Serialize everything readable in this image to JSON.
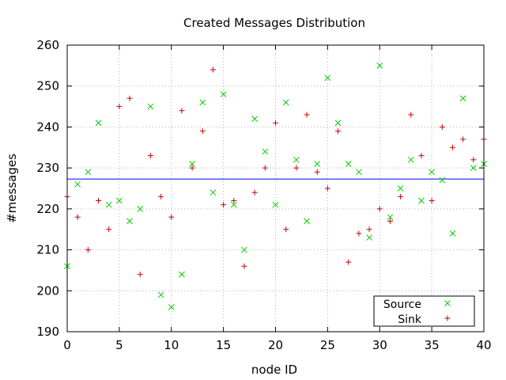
{
  "chart_data": {
    "type": "scatter",
    "title": "Created Messages Distribution",
    "xlabel": "node ID",
    "ylabel": "#messages",
    "xlim": [
      0,
      40
    ],
    "ylim": [
      190,
      260
    ],
    "xticks": [
      0,
      5,
      10,
      15,
      20,
      25,
      30,
      35,
      40
    ],
    "yticks": [
      190,
      200,
      210,
      220,
      230,
      240,
      250,
      260
    ],
    "grid": true,
    "legend_position": "bottom-right",
    "reference_line": {
      "y": 227.3,
      "color": "#0000ff"
    },
    "series": [
      {
        "name": "Source",
        "marker": "x",
        "color": "#00cc00",
        "x": [
          0,
          1,
          2,
          3,
          4,
          5,
          6,
          7,
          8,
          9,
          10,
          11,
          12,
          13,
          14,
          15,
          16,
          17,
          18,
          19,
          20,
          21,
          22,
          23,
          24,
          25,
          26,
          27,
          28,
          29,
          30,
          31,
          32,
          33,
          34,
          35,
          36,
          37,
          38,
          39,
          40
        ],
        "values": [
          206,
          226,
          229,
          241,
          221,
          222,
          217,
          220,
          245,
          199,
          196,
          204,
          231,
          246,
          224,
          248,
          221,
          210,
          242,
          234,
          221,
          246,
          232,
          217,
          231,
          252,
          241,
          231,
          229,
          213,
          255,
          218,
          225,
          232,
          222,
          229,
          227,
          214,
          247,
          230,
          231
        ]
      },
      {
        "name": "Sink",
        "marker": "+",
        "color": "#cc0000",
        "x": [
          0,
          1,
          2,
          3,
          4,
          5,
          6,
          7,
          8,
          9,
          10,
          11,
          12,
          13,
          14,
          15,
          16,
          17,
          18,
          19,
          20,
          21,
          22,
          23,
          24,
          25,
          26,
          27,
          28,
          29,
          30,
          31,
          32,
          33,
          34,
          35,
          36,
          37,
          38,
          39,
          40
        ],
        "values": [
          223,
          218,
          210,
          222,
          215,
          245,
          247,
          204,
          233,
          223,
          218,
          244,
          230,
          239,
          254,
          221,
          222,
          206,
          224,
          230,
          241,
          215,
          230,
          243,
          229,
          225,
          239,
          207,
          214,
          215,
          220,
          217,
          223,
          243,
          233,
          222,
          240,
          235,
          237,
          232,
          237
        ]
      }
    ]
  }
}
